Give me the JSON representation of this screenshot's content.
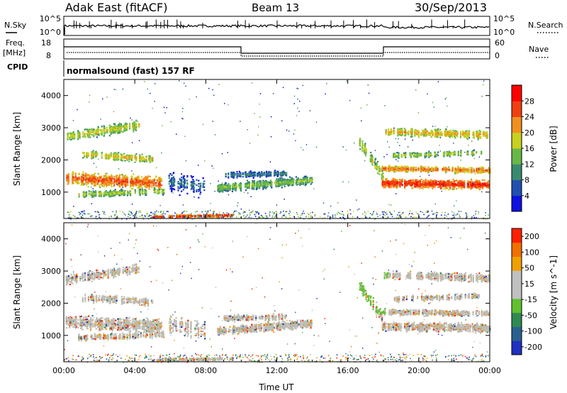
{
  "header": {
    "station": "Adak East (fitACF)",
    "beam": "Beam 13",
    "date": "30/Sep/2013"
  },
  "nsky_panel": {
    "left_label": "N.Sky",
    "right_label": "N.Search",
    "tick_top": "10^5",
    "tick_bottom": "10^0",
    "right_tick_top": "10^5",
    "right_tick_bottom": "10^0"
  },
  "freq_panel": {
    "left_label_1": "Freq.",
    "left_label_2": "[MHz]",
    "left_tick_top": "18",
    "left_tick_bottom": "8",
    "right_label": "Nave",
    "right_tick_top": "60",
    "right_tick_bottom": "0"
  },
  "cpid": {
    "label": "CPID",
    "text": "normalsound (fast) 157 RF"
  },
  "chart_data": [
    {
      "type": "heatmap",
      "title": "",
      "ylabel": "Slant Range [km]",
      "xlabel": "",
      "x_ticks": [
        "00:00",
        "04:00",
        "08:00",
        "12:00",
        "16:00",
        "20:00",
        "00:00"
      ],
      "xlim_hours": [
        0,
        24
      ],
      "ylim": [
        180,
        4500
      ],
      "y_ticks": [
        1000,
        2000,
        3000,
        4000
      ],
      "colorbar": {
        "label": "Power [dB]",
        "ticks": [
          "4",
          "8",
          "12",
          "16",
          "20",
          "24",
          "28"
        ],
        "colors": [
          "#1010e0",
          "#2050b0",
          "#3a8a70",
          "#68b848",
          "#c8d020",
          "#f09020",
          "#f04010",
          "#ff0000"
        ]
      }
    },
    {
      "type": "heatmap",
      "title": "",
      "ylabel": "Slant Range [km]",
      "xlabel": "Time UT",
      "x_ticks": [
        "00:00",
        "04:00",
        "08:00",
        "12:00",
        "16:00",
        "20:00",
        "00:00"
      ],
      "xlim_hours": [
        0,
        24
      ],
      "ylim": [
        180,
        4500
      ],
      "y_ticks": [
        1000,
        2000,
        3000,
        4000
      ],
      "colorbar": {
        "label": "Velocity [m s^-1]",
        "ticks": [
          "200",
          "100",
          "50",
          "15",
          "-15",
          "-50",
          "-100",
          "-200"
        ],
        "colors": [
          "#2030c0",
          "#2a6090",
          "#2e8a50",
          "#60c030",
          "#c0c0c0",
          "#c0c0c0",
          "#f0a000",
          "#f07000",
          "#ff2000"
        ]
      }
    }
  ],
  "colors": {
    "axis": "#000000",
    "ground_scatter": "#bdbdb5"
  }
}
